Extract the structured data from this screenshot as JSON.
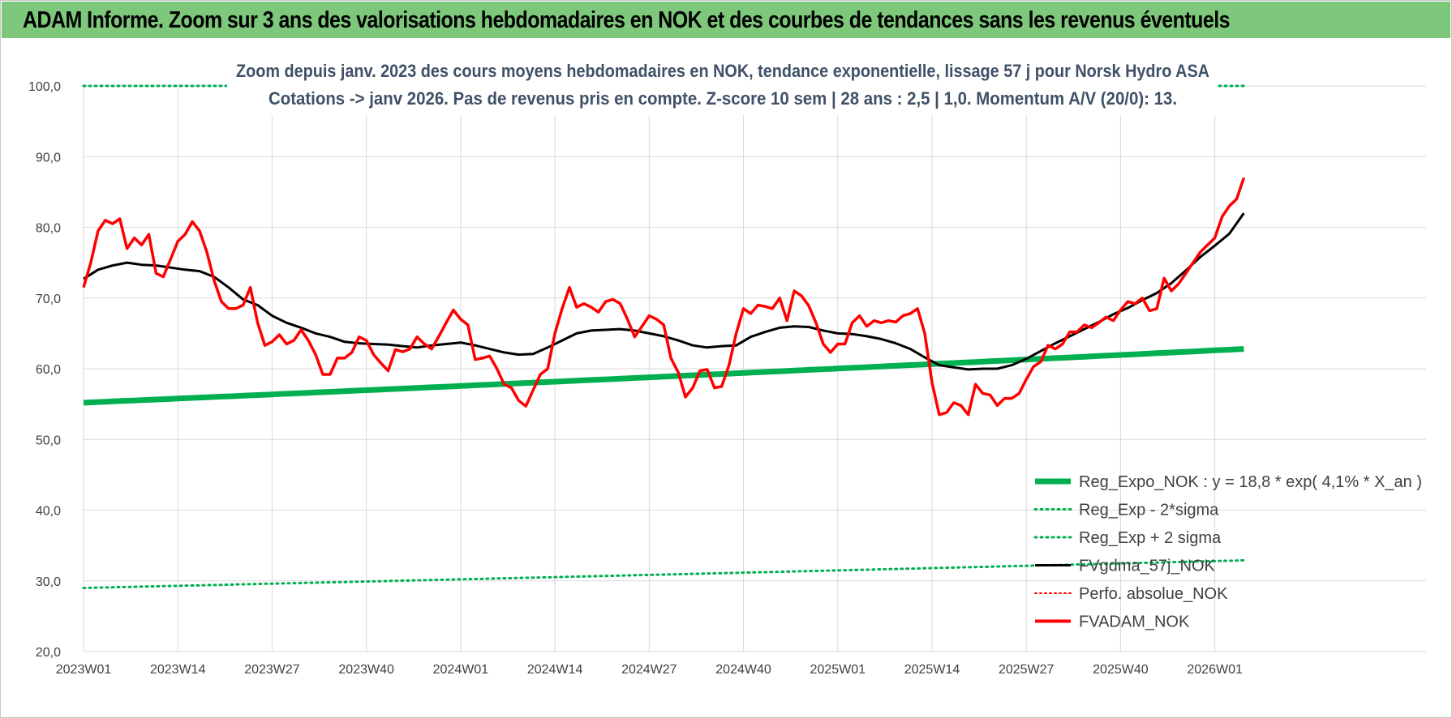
{
  "banner": {
    "title": "ADAM Informe. Zoom sur 3 ans des valorisations hebdomadaires en NOK et des courbes de tendances sans les revenus éventuels"
  },
  "colors": {
    "banner_bg": "#7dc87a",
    "reg_expo": "#00b050",
    "sigma": "#00b050",
    "fvgdma": "#000000",
    "perfo": "#ff0000",
    "fvadam": "#ff0000",
    "grid": "#d9d9d9",
    "subtitle": "#3f5067"
  },
  "chart_data": {
    "type": "line",
    "title_lines": [
      "Zoom depuis janv. 2023 des cours moyens hebdomadaires en NOK, tendance exponentielle, lissage 57 j pour Norsk Hydro ASA",
      "Cotations -> janv 2026. Pas de revenus pris en compte. Z-score 10 sem  | 28 ans : 2,5 | 1,0. Momentum A/V (20/0): 13."
    ],
    "ylim": [
      20,
      100
    ],
    "yticks": [
      "20,0",
      "30,0",
      "40,0",
      "50,0",
      "60,0",
      "70,0",
      "80,0",
      "90,0",
      "100,0"
    ],
    "ytick_values": [
      20,
      30,
      40,
      50,
      60,
      70,
      80,
      90,
      100
    ],
    "xtick_labels": [
      "2023W01",
      "2023W14",
      "2023W27",
      "2023W40",
      "2024W01",
      "2024W14",
      "2024W27",
      "2024W40",
      "2025W01",
      "2025W14",
      "2025W27",
      "2025W40",
      "2026W01"
    ],
    "xtick_weeks": [
      0,
      13,
      26,
      39,
      52,
      65,
      78,
      91,
      104,
      117,
      130,
      143,
      156
    ],
    "n_weeks": 161,
    "grid": true,
    "legend_position": "bottom-right",
    "series": [
      {
        "name": "Reg_Expo_NOK : y = 18,8 * exp( 4,1% *  X_an )",
        "style": "thick-solid",
        "color": "#00b050",
        "start_value": 55.2,
        "end_value": 62.8
      },
      {
        "name": "Reg_Exp - 2*sigma",
        "style": "dotted",
        "color": "#00b050",
        "start_value": 29.0,
        "end_value": 32.9
      },
      {
        "name": "Reg_Exp + 2 sigma",
        "style": "dotted",
        "color": "#00b050",
        "constant_value": 100.0
      },
      {
        "name": "FVgdma_57j_NOK",
        "style": "solid",
        "color": "#000000",
        "points": [
          [
            0,
            72.7
          ],
          [
            2,
            74.0
          ],
          [
            4,
            74.6
          ],
          [
            6,
            75.0
          ],
          [
            8,
            74.7
          ],
          [
            10,
            74.6
          ],
          [
            12,
            74.3
          ],
          [
            14,
            74.0
          ],
          [
            16,
            73.8
          ],
          [
            18,
            73.0
          ],
          [
            20,
            71.5
          ],
          [
            22,
            69.8
          ],
          [
            24,
            69.0
          ],
          [
            26,
            67.5
          ],
          [
            28,
            66.5
          ],
          [
            30,
            65.8
          ],
          [
            32,
            65.0
          ],
          [
            34,
            64.5
          ],
          [
            36,
            63.8
          ],
          [
            38,
            63.6
          ],
          [
            40,
            63.5
          ],
          [
            42,
            63.4
          ],
          [
            44,
            63.2
          ],
          [
            46,
            63.0
          ],
          [
            48,
            63.3
          ],
          [
            50,
            63.5
          ],
          [
            52,
            63.7
          ],
          [
            54,
            63.3
          ],
          [
            56,
            62.8
          ],
          [
            58,
            62.3
          ],
          [
            60,
            62.0
          ],
          [
            62,
            62.1
          ],
          [
            64,
            63.0
          ],
          [
            66,
            64.0
          ],
          [
            68,
            65.0
          ],
          [
            70,
            65.4
          ],
          [
            72,
            65.5
          ],
          [
            74,
            65.6
          ],
          [
            76,
            65.4
          ],
          [
            78,
            65.0
          ],
          [
            80,
            64.6
          ],
          [
            82,
            64.0
          ],
          [
            84,
            63.3
          ],
          [
            86,
            63.0
          ],
          [
            88,
            63.2
          ],
          [
            90,
            63.3
          ],
          [
            92,
            64.5
          ],
          [
            94,
            65.2
          ],
          [
            96,
            65.8
          ],
          [
            98,
            66.0
          ],
          [
            100,
            65.9
          ],
          [
            102,
            65.4
          ],
          [
            104,
            65.0
          ],
          [
            106,
            64.9
          ],
          [
            108,
            64.6
          ],
          [
            110,
            64.2
          ],
          [
            112,
            63.6
          ],
          [
            114,
            62.8
          ],
          [
            116,
            61.6
          ],
          [
            118,
            60.5
          ],
          [
            120,
            60.2
          ],
          [
            122,
            59.9
          ],
          [
            124,
            60.0
          ],
          [
            126,
            60.0
          ],
          [
            128,
            60.5
          ],
          [
            130,
            61.4
          ],
          [
            132,
            62.5
          ],
          [
            134,
            63.6
          ],
          [
            136,
            64.6
          ],
          [
            138,
            65.6
          ],
          [
            140,
            66.6
          ],
          [
            142,
            67.7
          ],
          [
            144,
            68.6
          ],
          [
            146,
            69.7
          ],
          [
            148,
            70.7
          ],
          [
            150,
            72.1
          ],
          [
            152,
            73.9
          ],
          [
            154,
            75.8
          ],
          [
            156,
            77.4
          ],
          [
            158,
            79.1
          ],
          [
            160,
            82.0
          ]
        ]
      },
      {
        "name": "Perfo. absolue_NOK",
        "style": "dotted",
        "color": "#ff0000"
      },
      {
        "name": "FVADAM_NOK",
        "style": "solid",
        "color": "#ff0000",
        "points": [
          [
            0,
            71.5
          ],
          [
            1,
            75.0
          ],
          [
            2,
            79.5
          ],
          [
            3,
            81.0
          ],
          [
            4,
            80.5
          ],
          [
            5,
            81.2
          ],
          [
            6,
            77.0
          ],
          [
            7,
            78.5
          ],
          [
            8,
            77.5
          ],
          [
            9,
            79.0
          ],
          [
            10,
            73.5
          ],
          [
            11,
            73.0
          ],
          [
            12,
            75.5
          ],
          [
            13,
            78.0
          ],
          [
            14,
            79.0
          ],
          [
            15,
            80.8
          ],
          [
            16,
            79.5
          ],
          [
            17,
            76.5
          ],
          [
            18,
            72.5
          ],
          [
            19,
            69.5
          ],
          [
            20,
            68.5
          ],
          [
            21,
            68.5
          ],
          [
            22,
            69.0
          ],
          [
            23,
            71.5
          ],
          [
            24,
            66.5
          ],
          [
            25,
            63.3
          ],
          [
            26,
            63.8
          ],
          [
            27,
            64.8
          ],
          [
            28,
            63.5
          ],
          [
            29,
            64.0
          ],
          [
            30,
            65.5
          ],
          [
            31,
            64.0
          ],
          [
            32,
            62.0
          ],
          [
            33,
            59.2
          ],
          [
            34,
            59.2
          ],
          [
            35,
            61.5
          ],
          [
            36,
            61.5
          ],
          [
            37,
            62.3
          ],
          [
            38,
            64.5
          ],
          [
            39,
            64.0
          ],
          [
            40,
            62.0
          ],
          [
            41,
            60.8
          ],
          [
            42,
            59.7
          ],
          [
            43,
            62.7
          ],
          [
            44,
            62.4
          ],
          [
            45,
            62.8
          ],
          [
            46,
            64.5
          ],
          [
            47,
            63.5
          ],
          [
            48,
            62.8
          ],
          [
            49,
            64.6
          ],
          [
            50,
            66.5
          ],
          [
            51,
            68.3
          ],
          [
            52,
            67.0
          ],
          [
            53,
            66.2
          ],
          [
            54,
            61.3
          ],
          [
            55,
            61.5
          ],
          [
            56,
            61.8
          ],
          [
            57,
            60.0
          ],
          [
            58,
            57.8
          ],
          [
            59,
            57.3
          ],
          [
            60,
            55.5
          ],
          [
            61,
            54.7
          ],
          [
            62,
            57.0
          ],
          [
            63,
            59.2
          ],
          [
            64,
            60.0
          ],
          [
            65,
            65.0
          ],
          [
            66,
            68.5
          ],
          [
            67,
            71.5
          ],
          [
            68,
            68.7
          ],
          [
            69,
            69.2
          ],
          [
            70,
            68.7
          ],
          [
            71,
            68.0
          ],
          [
            72,
            69.5
          ],
          [
            73,
            69.8
          ],
          [
            74,
            69.2
          ],
          [
            75,
            67.0
          ],
          [
            76,
            64.5
          ],
          [
            77,
            66.0
          ],
          [
            78,
            67.5
          ],
          [
            79,
            67.0
          ],
          [
            80,
            66.2
          ],
          [
            81,
            61.5
          ],
          [
            82,
            59.5
          ],
          [
            83,
            56.0
          ],
          [
            84,
            57.3
          ],
          [
            85,
            59.7
          ],
          [
            86,
            59.9
          ],
          [
            87,
            57.3
          ],
          [
            88,
            57.5
          ],
          [
            89,
            60.5
          ],
          [
            90,
            65.0
          ],
          [
            91,
            68.5
          ],
          [
            92,
            67.8
          ],
          [
            93,
            69.0
          ],
          [
            94,
            68.8
          ],
          [
            95,
            68.5
          ],
          [
            96,
            70.0
          ],
          [
            97,
            66.8
          ],
          [
            98,
            71.0
          ],
          [
            99,
            70.3
          ],
          [
            100,
            68.9
          ],
          [
            101,
            66.5
          ],
          [
            102,
            63.5
          ],
          [
            103,
            62.3
          ],
          [
            104,
            63.5
          ],
          [
            105,
            63.5
          ],
          [
            106,
            66.5
          ],
          [
            107,
            67.5
          ],
          [
            108,
            66.0
          ],
          [
            109,
            66.8
          ],
          [
            110,
            66.5
          ],
          [
            111,
            66.8
          ],
          [
            112,
            66.6
          ],
          [
            113,
            67.5
          ],
          [
            114,
            67.8
          ],
          [
            115,
            68.5
          ],
          [
            116,
            65.0
          ],
          [
            117,
            58.0
          ],
          [
            118,
            53.5
          ],
          [
            119,
            53.8
          ],
          [
            120,
            55.2
          ],
          [
            121,
            54.8
          ],
          [
            122,
            53.5
          ],
          [
            123,
            57.8
          ],
          [
            124,
            56.5
          ],
          [
            125,
            56.3
          ],
          [
            126,
            54.8
          ],
          [
            127,
            55.8
          ],
          [
            128,
            55.8
          ],
          [
            129,
            56.5
          ],
          [
            130,
            58.5
          ],
          [
            131,
            60.3
          ],
          [
            132,
            61.0
          ],
          [
            133,
            63.3
          ],
          [
            134,
            62.8
          ],
          [
            135,
            63.5
          ],
          [
            136,
            65.2
          ],
          [
            137,
            65.2
          ],
          [
            138,
            66.2
          ],
          [
            139,
            65.8
          ],
          [
            140,
            66.5
          ],
          [
            141,
            67.3
          ],
          [
            142,
            66.8
          ],
          [
            143,
            68.3
          ],
          [
            144,
            69.5
          ],
          [
            145,
            69.2
          ],
          [
            146,
            70.0
          ],
          [
            147,
            68.2
          ],
          [
            148,
            68.5
          ],
          [
            149,
            72.8
          ],
          [
            150,
            71.0
          ],
          [
            151,
            72.0
          ],
          [
            152,
            73.5
          ],
          [
            153,
            75.0
          ],
          [
            154,
            76.5
          ],
          [
            155,
            77.5
          ],
          [
            156,
            78.5
          ],
          [
            157,
            81.5
          ],
          [
            158,
            83.0
          ],
          [
            159,
            84.0
          ],
          [
            160,
            87.0
          ]
        ]
      }
    ]
  }
}
